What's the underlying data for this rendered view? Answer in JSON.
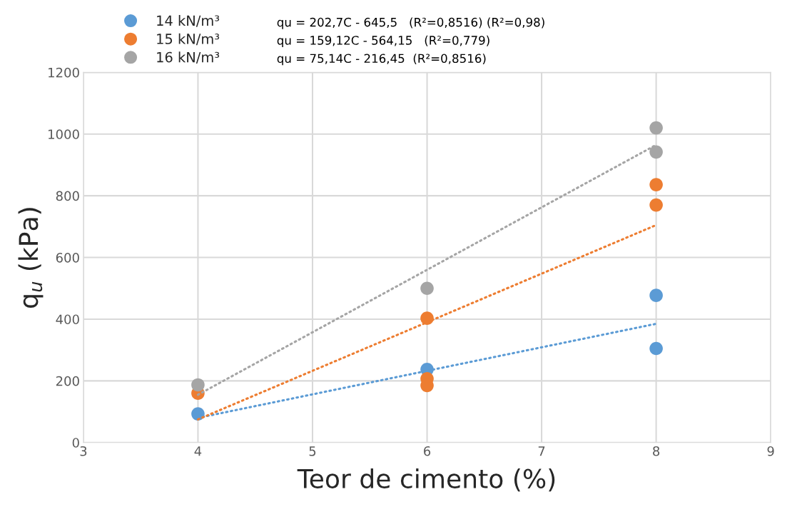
{
  "chart_data": {
    "type": "scatter",
    "xlabel": "Teor de cimento (%)",
    "ylabel": "q$_{u}$ (kPa)",
    "xlim": [
      3,
      9
    ],
    "xticks": [
      3,
      4,
      5,
      6,
      7,
      8,
      9
    ],
    "ylim": [
      0,
      1200
    ],
    "yticks": [
      0,
      200,
      400,
      600,
      800,
      1000,
      1200
    ],
    "grid": true,
    "legend": "top",
    "series": [
      {
        "name": "14 kN/m³",
        "marker": "circle",
        "color": "#5b9bd5",
        "x": [
          4,
          6,
          8,
          8
        ],
        "values": [
          93,
          237,
          477,
          305
        ]
      },
      {
        "name": "15 kN/m³",
        "marker": "circle",
        "color": "#ed7d31",
        "x": [
          4,
          6,
          6,
          6,
          8,
          8
        ],
        "values": [
          160,
          403,
          207,
          185,
          836,
          770
        ]
      },
      {
        "name": "16 kN/m³",
        "marker": "circle",
        "color": "#a5a5a5",
        "x": [
          4,
          6,
          8,
          8
        ],
        "values": [
          187,
          500,
          1020,
          942
        ]
      },
      {
        "type": "line",
        "color": "#5b9bd5",
        "line_style": "dotted",
        "x": [
          4,
          8
        ],
        "values": [
          80,
          385
        ]
      },
      {
        "type": "line",
        "color": "#ed7d31",
        "line_style": "dotted",
        "x": [
          4,
          8
        ],
        "values": [
          75,
          705
        ]
      },
      {
        "type": "line",
        "color": "#a5a5a5",
        "line_style": "dotted",
        "x": [
          4,
          8
        ],
        "values": [
          155,
          965
        ]
      }
    ],
    "annotations": [
      "qu = 202,7C - 645,5   (R²=0,8516) (R²=0,98)",
      "qu = 159,12C - 564,15   (R²=0,779)",
      "qu = 75,14C - 216,45  (R²=0,8516)"
    ]
  }
}
